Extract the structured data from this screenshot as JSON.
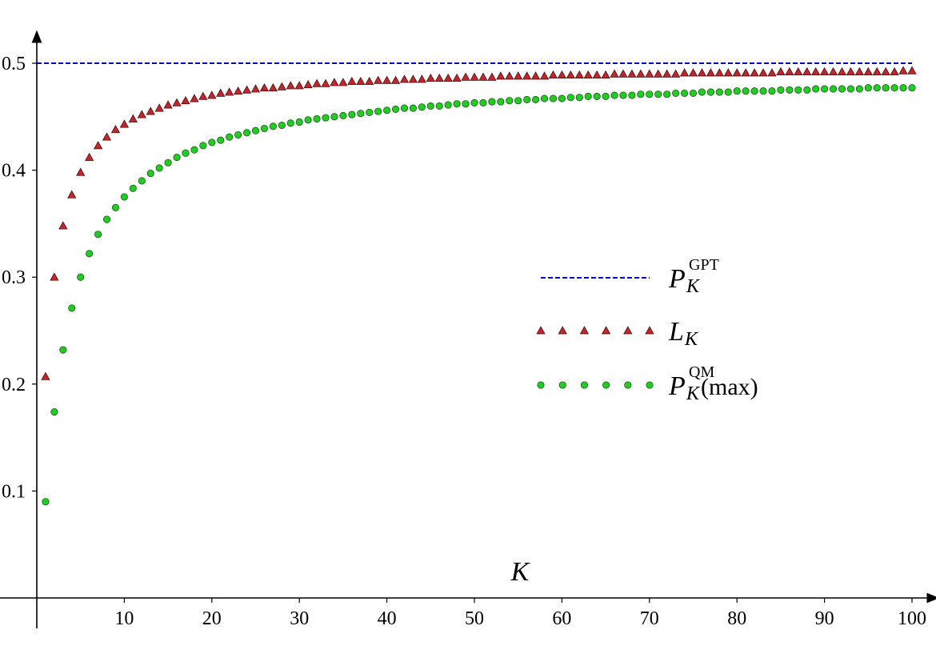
{
  "chart_data": {
    "type": "scatter",
    "title": "",
    "xlabel": "K",
    "ylabel": "",
    "xlim": [
      0,
      100
    ],
    "ylim": [
      0,
      0.5
    ],
    "x_ticks": [
      10,
      20,
      30,
      40,
      50,
      60,
      70,
      80,
      90,
      100
    ],
    "y_ticks": [
      0.1,
      0.2,
      0.3,
      0.4,
      0.5
    ],
    "x_tick_labels": [
      "10",
      "20",
      "30",
      "40",
      "50",
      "60",
      "70",
      "80",
      "90",
      "100"
    ],
    "y_tick_labels": [
      "0.1",
      "0.2",
      "0.3",
      "0.4",
      "0.5"
    ],
    "grid": false,
    "legend_position": "center-right",
    "series": [
      {
        "legend_main": "P",
        "legend_sub": "K",
        "legend_sup": "GPT",
        "legend_suffix": "",
        "style": "dashed-line",
        "color": "#0000cc",
        "x": [
          1,
          100
        ],
        "y": [
          0.5,
          0.5
        ]
      },
      {
        "legend_main": "L",
        "legend_sub": "K",
        "legend_sup": "",
        "legend_suffix": "",
        "style": "triangle",
        "color": "#c0272d",
        "x": [
          1,
          2,
          3,
          4,
          5,
          6,
          7,
          8,
          9,
          10,
          11,
          12,
          13,
          14,
          15,
          16,
          17,
          18,
          19,
          20,
          21,
          22,
          23,
          24,
          25,
          26,
          27,
          28,
          29,
          30,
          31,
          32,
          33,
          34,
          35,
          36,
          37,
          38,
          39,
          40,
          41,
          42,
          43,
          44,
          45,
          46,
          47,
          48,
          49,
          50,
          51,
          52,
          53,
          54,
          55,
          56,
          57,
          58,
          59,
          60,
          61,
          62,
          63,
          64,
          65,
          66,
          67,
          68,
          69,
          70,
          71,
          72,
          73,
          74,
          75,
          76,
          77,
          78,
          79,
          80,
          81,
          82,
          83,
          84,
          85,
          86,
          87,
          88,
          89,
          90,
          91,
          92,
          93,
          94,
          95,
          96,
          97,
          98,
          99,
          100
        ],
        "y": [
          0.207,
          0.3,
          0.348,
          0.377,
          0.398,
          0.412,
          0.423,
          0.431,
          0.438,
          0.443,
          0.448,
          0.452,
          0.455,
          0.458,
          0.461,
          0.463,
          0.465,
          0.467,
          0.469,
          0.47,
          0.472,
          0.473,
          0.474,
          0.475,
          0.476,
          0.477,
          0.477,
          0.478,
          0.479,
          0.479,
          0.48,
          0.481,
          0.481,
          0.482,
          0.482,
          0.483,
          0.483,
          0.483,
          0.484,
          0.484,
          0.484,
          0.485,
          0.485,
          0.485,
          0.486,
          0.486,
          0.486,
          0.486,
          0.487,
          0.487,
          0.487,
          0.487,
          0.488,
          0.488,
          0.488,
          0.488,
          0.488,
          0.488,
          0.489,
          0.489,
          0.489,
          0.489,
          0.489,
          0.489,
          0.489,
          0.49,
          0.49,
          0.49,
          0.49,
          0.49,
          0.49,
          0.49,
          0.49,
          0.491,
          0.491,
          0.491,
          0.491,
          0.491,
          0.491,
          0.491,
          0.491,
          0.491,
          0.491,
          0.491,
          0.492,
          0.492,
          0.492,
          0.492,
          0.492,
          0.492,
          0.492,
          0.492,
          0.492,
          0.492,
          0.492,
          0.492,
          0.492,
          0.492,
          0.493,
          0.493
        ]
      },
      {
        "legend_main": "P",
        "legend_sub": "K",
        "legend_sup": "QM",
        "legend_suffix": "(max)",
        "style": "circle",
        "color": "#22cc22",
        "x": [
          1,
          2,
          3,
          4,
          5,
          6,
          7,
          8,
          9,
          10,
          11,
          12,
          13,
          14,
          15,
          16,
          17,
          18,
          19,
          20,
          21,
          22,
          23,
          24,
          25,
          26,
          27,
          28,
          29,
          30,
          31,
          32,
          33,
          34,
          35,
          36,
          37,
          38,
          39,
          40,
          41,
          42,
          43,
          44,
          45,
          46,
          47,
          48,
          49,
          50,
          51,
          52,
          53,
          54,
          55,
          56,
          57,
          58,
          59,
          60,
          61,
          62,
          63,
          64,
          65,
          66,
          67,
          68,
          69,
          70,
          71,
          72,
          73,
          74,
          75,
          76,
          77,
          78,
          79,
          80,
          81,
          82,
          83,
          84,
          85,
          86,
          87,
          88,
          89,
          90,
          91,
          92,
          93,
          94,
          95,
          96,
          97,
          98,
          99,
          100
        ],
        "y": [
          0.09,
          0.174,
          0.232,
          0.271,
          0.3,
          0.322,
          0.34,
          0.354,
          0.365,
          0.375,
          0.383,
          0.39,
          0.397,
          0.402,
          0.407,
          0.412,
          0.416,
          0.419,
          0.423,
          0.426,
          0.428,
          0.431,
          0.433,
          0.435,
          0.437,
          0.439,
          0.441,
          0.442,
          0.444,
          0.445,
          0.447,
          0.448,
          0.449,
          0.45,
          0.451,
          0.452,
          0.453,
          0.454,
          0.455,
          0.456,
          0.457,
          0.458,
          0.458,
          0.459,
          0.46,
          0.46,
          0.461,
          0.462,
          0.462,
          0.463,
          0.463,
          0.464,
          0.464,
          0.465,
          0.465,
          0.466,
          0.466,
          0.467,
          0.467,
          0.467,
          0.468,
          0.468,
          0.469,
          0.469,
          0.469,
          0.47,
          0.47,
          0.47,
          0.471,
          0.471,
          0.471,
          0.471,
          0.472,
          0.472,
          0.472,
          0.473,
          0.473,
          0.473,
          0.473,
          0.474,
          0.474,
          0.474,
          0.474,
          0.474,
          0.475,
          0.475,
          0.475,
          0.475,
          0.476,
          0.476,
          0.476,
          0.476,
          0.476,
          0.476,
          0.477,
          0.477,
          0.477,
          0.477,
          0.477,
          0.477
        ]
      }
    ]
  }
}
